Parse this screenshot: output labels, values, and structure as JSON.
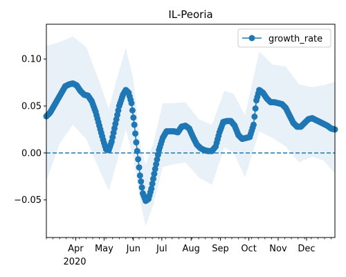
{
  "chart_data": {
    "type": "line",
    "title": "IL-Peoria",
    "xlabel": "",
    "ylabel": "",
    "x_range": [
      "2020-03-01",
      "2020-12-31"
    ],
    "ylim": [
      -0.09,
      0.137
    ],
    "y_ticks": [
      -0.05,
      0.0,
      0.05,
      0.1
    ],
    "y_tick_labels": [
      "−0.05",
      "0.00",
      "0.05",
      "0.10"
    ],
    "x_ticks": [
      {
        "date": "2020-04-01",
        "label": "Apr"
      },
      {
        "date": "2020-05-01",
        "label": "May"
      },
      {
        "date": "2020-06-01",
        "label": "Jun"
      },
      {
        "date": "2020-07-01",
        "label": "Jul"
      },
      {
        "date": "2020-08-01",
        "label": "Aug"
      },
      {
        "date": "2020-09-01",
        "label": "Sep"
      },
      {
        "date": "2020-10-01",
        "label": "Oct"
      },
      {
        "date": "2020-11-01",
        "label": "Nov"
      },
      {
        "date": "2020-12-01",
        "label": "Dec"
      }
    ],
    "x_secondary_label": "2020",
    "reference_line": {
      "y": 0.0,
      "style": "dashed",
      "color": "#1f77b4"
    },
    "legend": {
      "position": "top-right",
      "entries": [
        "growth_rate"
      ]
    },
    "grid": false,
    "series": [
      {
        "name": "growth_rate",
        "color": "#1f77b4",
        "marker": "circle",
        "points": [
          [
            "2020-03-01",
            0.039
          ],
          [
            "2020-03-05",
            0.043
          ],
          [
            "2020-03-09",
            0.05
          ],
          [
            "2020-03-13",
            0.057
          ],
          [
            "2020-03-17",
            0.064
          ],
          [
            "2020-03-21",
            0.071
          ],
          [
            "2020-03-25",
            0.073
          ],
          [
            "2020-03-29",
            0.074
          ],
          [
            "2020-04-02",
            0.072
          ],
          [
            "2020-04-06",
            0.066
          ],
          [
            "2020-04-10",
            0.062
          ],
          [
            "2020-04-14",
            0.061
          ],
          [
            "2020-04-18",
            0.055
          ],
          [
            "2020-04-22",
            0.044
          ],
          [
            "2020-04-26",
            0.029
          ],
          [
            "2020-04-30",
            0.014
          ],
          [
            "2020-05-03",
            0.004
          ],
          [
            "2020-05-06",
            0.003
          ],
          [
            "2020-05-09",
            0.012
          ],
          [
            "2020-05-13",
            0.031
          ],
          [
            "2020-05-17",
            0.05
          ],
          [
            "2020-05-21",
            0.062
          ],
          [
            "2020-05-24",
            0.067
          ],
          [
            "2020-05-27",
            0.064
          ],
          [
            "2020-05-30",
            0.053
          ],
          [
            "2020-06-02",
            0.03
          ],
          [
            "2020-06-05",
            0.002
          ],
          [
            "2020-06-08",
            -0.024
          ],
          [
            "2020-06-11",
            -0.043
          ],
          [
            "2020-06-14",
            -0.051
          ],
          [
            "2020-06-17",
            -0.049
          ],
          [
            "2020-06-20",
            -0.038
          ],
          [
            "2020-06-24",
            -0.017
          ],
          [
            "2020-06-28",
            0.003
          ],
          [
            "2020-07-02",
            0.016
          ],
          [
            "2020-07-06",
            0.023
          ],
          [
            "2020-07-10",
            0.023
          ],
          [
            "2020-07-14",
            0.023
          ],
          [
            "2020-07-18",
            0.022
          ],
          [
            "2020-07-22",
            0.028
          ],
          [
            "2020-07-26",
            0.029
          ],
          [
            "2020-07-30",
            0.026
          ],
          [
            "2020-08-03",
            0.017
          ],
          [
            "2020-08-07",
            0.009
          ],
          [
            "2020-08-11",
            0.005
          ],
          [
            "2020-08-15",
            0.003
          ],
          [
            "2020-08-19",
            0.002
          ],
          [
            "2020-08-23",
            0.002
          ],
          [
            "2020-08-27",
            0.007
          ],
          [
            "2020-08-31",
            0.022
          ],
          [
            "2020-09-04",
            0.033
          ],
          [
            "2020-09-08",
            0.034
          ],
          [
            "2020-09-12",
            0.034
          ],
          [
            "2020-09-16",
            0.029
          ],
          [
            "2020-09-20",
            0.019
          ],
          [
            "2020-09-24",
            0.015
          ],
          [
            "2020-09-28",
            0.016
          ],
          [
            "2020-10-02",
            0.017
          ],
          [
            "2020-10-06",
            0.03
          ],
          [
            "2020-10-09",
            0.056
          ],
          [
            "2020-10-12",
            0.067
          ],
          [
            "2020-10-16",
            0.064
          ],
          [
            "2020-10-20",
            0.058
          ],
          [
            "2020-10-24",
            0.054
          ],
          [
            "2020-10-28",
            0.054
          ],
          [
            "2020-11-01",
            0.053
          ],
          [
            "2020-11-05",
            0.052
          ],
          [
            "2020-11-09",
            0.048
          ],
          [
            "2020-11-13",
            0.04
          ],
          [
            "2020-11-17",
            0.032
          ],
          [
            "2020-11-21",
            0.028
          ],
          [
            "2020-11-25",
            0.028
          ],
          [
            "2020-11-29",
            0.032
          ],
          [
            "2020-12-03",
            0.036
          ],
          [
            "2020-12-07",
            0.037
          ],
          [
            "2020-12-11",
            0.035
          ],
          [
            "2020-12-15",
            0.033
          ],
          [
            "2020-12-19",
            0.031
          ],
          [
            "2020-12-23",
            0.029
          ],
          [
            "2020-12-27",
            0.026
          ],
          [
            "2020-12-31",
            0.025
          ]
        ],
        "band": {
          "color": "#1f77b4",
          "opacity": 0.1,
          "upper": [
            [
              "2020-03-01",
              0.114
            ],
            [
              "2020-03-15",
              0.118
            ],
            [
              "2020-03-29",
              0.124
            ],
            [
              "2020-04-12",
              0.113
            ],
            [
              "2020-04-26",
              0.076
            ],
            [
              "2020-05-06",
              0.047
            ],
            [
              "2020-05-14",
              0.077
            ],
            [
              "2020-05-24",
              0.112
            ],
            [
              "2020-06-01",
              0.078
            ],
            [
              "2020-06-09",
              0.004
            ],
            [
              "2020-06-14",
              -0.012
            ],
            [
              "2020-06-22",
              0.01
            ],
            [
              "2020-07-02",
              0.053
            ],
            [
              "2020-07-14",
              0.053
            ],
            [
              "2020-07-26",
              0.054
            ],
            [
              "2020-08-09",
              0.036
            ],
            [
              "2020-08-23",
              0.03
            ],
            [
              "2020-09-05",
              0.066
            ],
            [
              "2020-09-15",
              0.063
            ],
            [
              "2020-09-27",
              0.04
            ],
            [
              "2020-10-12",
              0.108
            ],
            [
              "2020-10-26",
              0.094
            ],
            [
              "2020-11-09",
              0.092
            ],
            [
              "2020-11-23",
              0.073
            ],
            [
              "2020-12-07",
              0.07
            ],
            [
              "2020-12-19",
              0.072
            ],
            [
              "2020-12-31",
              0.076
            ]
          ],
          "lower": [
            [
              "2020-03-01",
              -0.03
            ],
            [
              "2020-03-15",
              0.01
            ],
            [
              "2020-03-29",
              0.03
            ],
            [
              "2020-04-12",
              0.015
            ],
            [
              "2020-04-26",
              -0.018
            ],
            [
              "2020-05-06",
              -0.04
            ],
            [
              "2020-05-14",
              -0.012
            ],
            [
              "2020-05-24",
              0.025
            ],
            [
              "2020-06-01",
              -0.005
            ],
            [
              "2020-06-09",
              -0.056
            ],
            [
              "2020-06-14",
              -0.078
            ],
            [
              "2020-06-22",
              -0.055
            ],
            [
              "2020-07-02",
              -0.015
            ],
            [
              "2020-07-14",
              -0.012
            ],
            [
              "2020-07-26",
              -0.01
            ],
            [
              "2020-08-09",
              -0.026
            ],
            [
              "2020-08-23",
              -0.034
            ],
            [
              "2020-09-05",
              0.006
            ],
            [
              "2020-09-15",
              0.0
            ],
            [
              "2020-09-27",
              -0.026
            ],
            [
              "2020-10-12",
              0.023
            ],
            [
              "2020-10-26",
              0.016
            ],
            [
              "2020-11-09",
              0.007
            ],
            [
              "2020-11-23",
              -0.01
            ],
            [
              "2020-12-07",
              -0.004
            ],
            [
              "2020-12-19",
              -0.008
            ],
            [
              "2020-12-31",
              -0.022
            ]
          ]
        }
      }
    ]
  }
}
